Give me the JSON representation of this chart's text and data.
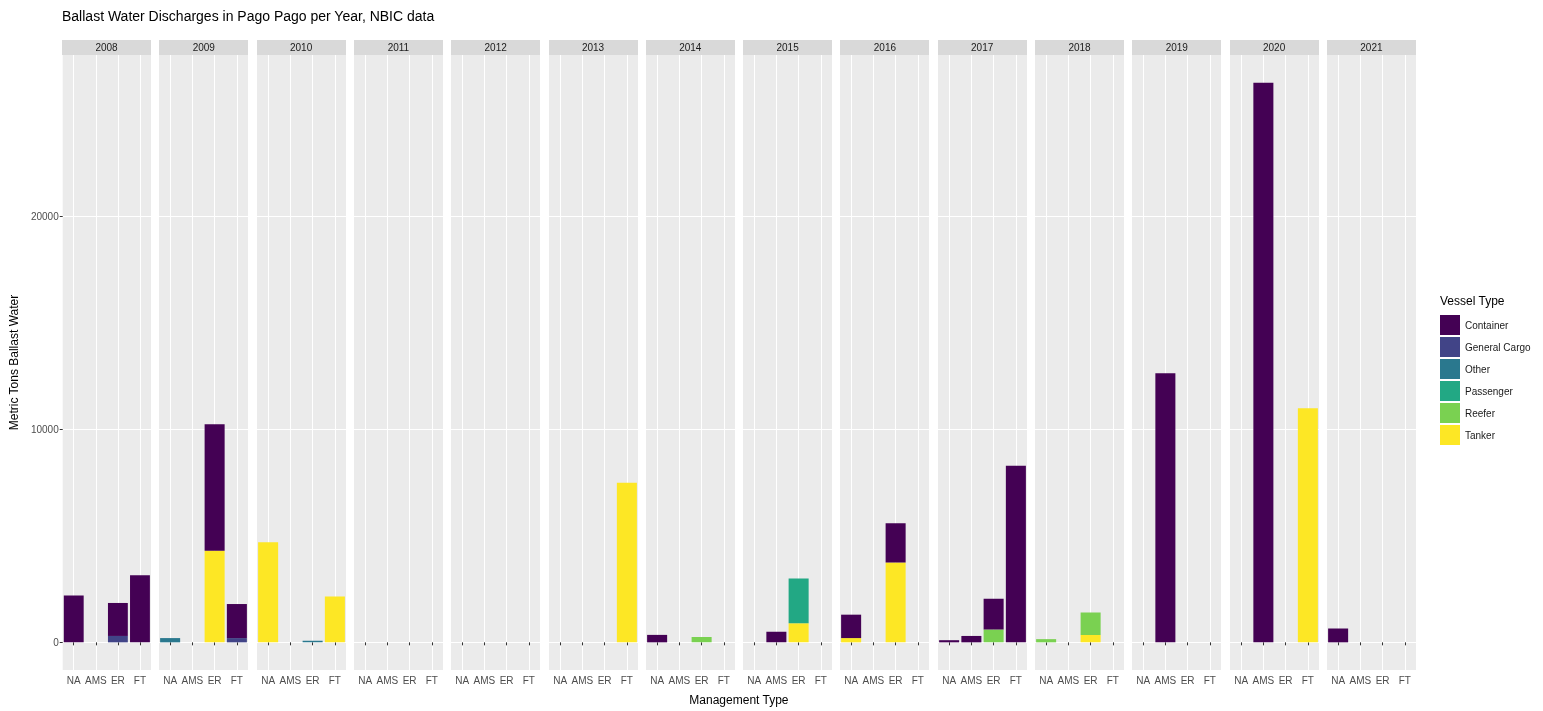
{
  "chart_data": [
    {
      "type": "bar",
      "title": "Ballast Water Discharges in Pago Pago per Year, NBIC data",
      "subtitle": "2008",
      "ylabel": "Metric Tons Ballast Water",
      "categories": [
        "NA",
        "AMS",
        "ER",
        "FT"
      ],
      "stacked": true,
      "grid": true,
      "ylim": [
        -1300,
        27600
      ],
      "yticks": [
        0,
        10000,
        20000
      ],
      "series": [
        {
          "color": "#fde725",
          "values": [
            null,
            null,
            null,
            null
          ]
        },
        {
          "color": "#7ad151",
          "values": [
            null,
            null,
            null,
            null
          ]
        },
        {
          "color": "#22a884",
          "values": [
            null,
            null,
            null,
            null
          ]
        },
        {
          "color": "#2a788e",
          "values": [
            null,
            null,
            null,
            null
          ]
        },
        {
          "color": "#414487",
          "values": [
            null,
            null,
            300,
            null
          ]
        },
        {
          "color": "#440154",
          "values": [
            2200,
            null,
            1550,
            3150
          ]
        }
      ]
    },
    {
      "type": "bar",
      "subtitle": "2009",
      "categories": [
        "NA",
        "AMS",
        "ER",
        "FT"
      ],
      "stacked": true,
      "grid": true,
      "tick_labels": "x",
      "ylim": [
        -1300,
        27600
      ],
      "yticks": [
        0,
        10000,
        20000
      ],
      "series": [
        {
          "color": "#fde725",
          "values": [
            null,
            null,
            4300,
            null
          ]
        },
        {
          "color": "#7ad151",
          "values": [
            null,
            null,
            null,
            null
          ]
        },
        {
          "color": "#22a884",
          "values": [
            null,
            null,
            null,
            null
          ]
        },
        {
          "color": "#2a788e",
          "values": [
            200,
            null,
            null,
            null
          ]
        },
        {
          "color": "#414487",
          "values": [
            null,
            null,
            null,
            200
          ]
        },
        {
          "color": "#440154",
          "values": [
            null,
            null,
            5950,
            1600
          ]
        }
      ]
    },
    {
      "type": "bar",
      "subtitle": "2010",
      "categories": [
        "NA",
        "AMS",
        "ER",
        "FT"
      ],
      "stacked": true,
      "grid": true,
      "tick_labels": "x",
      "ylim": [
        -1300,
        27600
      ],
      "yticks": [
        0,
        10000,
        20000
      ],
      "series": [
        {
          "color": "#fde725",
          "values": [
            4700,
            null,
            null,
            2150
          ]
        },
        {
          "color": "#7ad151",
          "values": [
            null,
            null,
            null,
            null
          ]
        },
        {
          "color": "#22a884",
          "values": [
            null,
            null,
            null,
            null
          ]
        },
        {
          "color": "#2a788e",
          "values": [
            null,
            null,
            80,
            null
          ]
        },
        {
          "color": "#414487",
          "values": [
            null,
            null,
            null,
            null
          ]
        },
        {
          "color": "#440154",
          "values": [
            null,
            null,
            null,
            null
          ]
        }
      ]
    },
    {
      "type": "bar",
      "subtitle": "2011",
      "categories": [
        "NA",
        "AMS",
        "ER",
        "FT"
      ],
      "stacked": true,
      "grid": true,
      "tick_labels": "x",
      "ylim": [
        -1300,
        27600
      ],
      "yticks": [
        0,
        10000,
        20000
      ],
      "series": [
        {
          "color": "#fde725",
          "values": [
            null,
            null,
            null,
            null
          ]
        },
        {
          "color": "#7ad151",
          "values": [
            null,
            null,
            null,
            null
          ]
        },
        {
          "color": "#22a884",
          "values": [
            null,
            null,
            null,
            null
          ]
        },
        {
          "color": "#2a788e",
          "values": [
            null,
            null,
            null,
            null
          ]
        },
        {
          "color": "#414487",
          "values": [
            null,
            null,
            null,
            null
          ]
        },
        {
          "color": "#440154",
          "values": [
            null,
            null,
            null,
            null
          ]
        }
      ]
    },
    {
      "type": "bar",
      "subtitle": "2012",
      "categories": [
        "NA",
        "AMS",
        "ER",
        "FT"
      ],
      "stacked": true,
      "grid": true,
      "tick_labels": "x",
      "ylim": [
        -1300,
        27600
      ],
      "yticks": [
        0,
        10000,
        20000
      ],
      "series": [
        {
          "color": "#fde725",
          "values": [
            null,
            null,
            null,
            null
          ]
        },
        {
          "color": "#7ad151",
          "values": [
            null,
            null,
            null,
            null
          ]
        },
        {
          "color": "#22a884",
          "values": [
            null,
            null,
            null,
            null
          ]
        },
        {
          "color": "#2a788e",
          "values": [
            null,
            null,
            null,
            null
          ]
        },
        {
          "color": "#414487",
          "values": [
            null,
            null,
            null,
            null
          ]
        },
        {
          "color": "#440154",
          "values": [
            null,
            null,
            null,
            null
          ]
        }
      ]
    },
    {
      "type": "bar",
      "subtitle": "2013",
      "categories": [
        "NA",
        "AMS",
        "ER",
        "FT"
      ],
      "stacked": true,
      "grid": true,
      "tick_labels": "x",
      "ylim": [
        -1300,
        27600
      ],
      "yticks": [
        0,
        10000,
        20000
      ],
      "series": [
        {
          "color": "#fde725",
          "values": [
            null,
            null,
            null,
            7500
          ]
        },
        {
          "color": "#7ad151",
          "values": [
            null,
            null,
            null,
            null
          ]
        },
        {
          "color": "#22a884",
          "values": [
            null,
            null,
            null,
            null
          ]
        },
        {
          "color": "#2a788e",
          "values": [
            null,
            null,
            null,
            null
          ]
        },
        {
          "color": "#414487",
          "values": [
            null,
            null,
            null,
            null
          ]
        },
        {
          "color": "#440154",
          "values": [
            null,
            null,
            null,
            null
          ]
        }
      ]
    },
    {
      "type": "bar",
      "subtitle": "2014",
      "xlabel": "Management Type",
      "categories": [
        "NA",
        "AMS",
        "ER",
        "FT"
      ],
      "stacked": true,
      "grid": true,
      "tick_labels": "x",
      "ylim": [
        -1300,
        27600
      ],
      "yticks": [
        0,
        10000,
        20000
      ],
      "series": [
        {
          "color": "#fde725",
          "values": [
            null,
            null,
            null,
            null
          ]
        },
        {
          "color": "#7ad151",
          "values": [
            null,
            null,
            250,
            null
          ]
        },
        {
          "color": "#22a884",
          "values": [
            null,
            null,
            null,
            null
          ]
        },
        {
          "color": "#2a788e",
          "values": [
            null,
            null,
            null,
            null
          ]
        },
        {
          "color": "#414487",
          "values": [
            null,
            null,
            null,
            null
          ]
        },
        {
          "color": "#440154",
          "values": [
            350,
            null,
            null,
            null
          ]
        }
      ]
    },
    {
      "type": "bar",
      "subtitle": "2015",
      "categories": [
        "NA",
        "AMS",
        "ER",
        "FT"
      ],
      "stacked": true,
      "grid": true,
      "tick_labels": "x",
      "ylim": [
        -1300,
        27600
      ],
      "yticks": [
        0,
        10000,
        20000
      ],
      "series": [
        {
          "color": "#fde725",
          "values": [
            null,
            null,
            900,
            null
          ]
        },
        {
          "color": "#7ad151",
          "values": [
            null,
            null,
            null,
            null
          ]
        },
        {
          "color": "#22a884",
          "values": [
            null,
            null,
            2100,
            null
          ]
        },
        {
          "color": "#2a788e",
          "values": [
            null,
            null,
            null,
            null
          ]
        },
        {
          "color": "#414487",
          "values": [
            null,
            null,
            null,
            null
          ]
        },
        {
          "color": "#440154",
          "values": [
            null,
            500,
            null,
            null
          ]
        }
      ]
    },
    {
      "type": "bar",
      "subtitle": "2016",
      "categories": [
        "NA",
        "AMS",
        "ER",
        "FT"
      ],
      "stacked": true,
      "grid": true,
      "tick_labels": "x",
      "ylim": [
        -1300,
        27600
      ],
      "yticks": [
        0,
        10000,
        20000
      ],
      "series": [
        {
          "color": "#fde725",
          "values": [
            200,
            null,
            3750,
            null
          ]
        },
        {
          "color": "#7ad151",
          "values": [
            null,
            null,
            null,
            null
          ]
        },
        {
          "color": "#22a884",
          "values": [
            null,
            null,
            null,
            null
          ]
        },
        {
          "color": "#2a788e",
          "values": [
            null,
            null,
            null,
            null
          ]
        },
        {
          "color": "#414487",
          "values": [
            null,
            null,
            null,
            null
          ]
        },
        {
          "color": "#440154",
          "values": [
            1100,
            null,
            1850,
            null
          ]
        }
      ]
    },
    {
      "type": "bar",
      "subtitle": "2017",
      "categories": [
        "NA",
        "AMS",
        "ER",
        "FT"
      ],
      "stacked": true,
      "grid": true,
      "tick_labels": "x",
      "ylim": [
        -1300,
        27600
      ],
      "yticks": [
        0,
        10000,
        20000
      ],
      "series": [
        {
          "color": "#fde725",
          "values": [
            null,
            null,
            null,
            null
          ]
        },
        {
          "color": "#7ad151",
          "values": [
            null,
            null,
            600,
            null
          ]
        },
        {
          "color": "#22a884",
          "values": [
            null,
            null,
            null,
            null
          ]
        },
        {
          "color": "#2a788e",
          "values": [
            null,
            null,
            null,
            null
          ]
        },
        {
          "color": "#414487",
          "values": [
            null,
            null,
            null,
            null
          ]
        },
        {
          "color": "#440154",
          "values": [
            100,
            300,
            1450,
            8300
          ]
        }
      ]
    },
    {
      "type": "bar",
      "subtitle": "2018",
      "categories": [
        "NA",
        "AMS",
        "ER",
        "FT"
      ],
      "stacked": true,
      "grid": true,
      "tick_labels": "x",
      "ylim": [
        -1300,
        27600
      ],
      "yticks": [
        0,
        10000,
        20000
      ],
      "series": [
        {
          "color": "#fde725",
          "values": [
            null,
            null,
            350,
            null
          ]
        },
        {
          "color": "#7ad151",
          "values": [
            150,
            null,
            1050,
            null
          ]
        },
        {
          "color": "#22a884",
          "values": [
            null,
            null,
            null,
            null
          ]
        },
        {
          "color": "#2a788e",
          "values": [
            null,
            null,
            null,
            null
          ]
        },
        {
          "color": "#414487",
          "values": [
            null,
            null,
            null,
            null
          ]
        },
        {
          "color": "#440154",
          "values": [
            null,
            null,
            null,
            null
          ]
        }
      ]
    },
    {
      "type": "bar",
      "subtitle": "2019",
      "categories": [
        "NA",
        "AMS",
        "ER",
        "FT"
      ],
      "stacked": true,
      "grid": true,
      "tick_labels": "x",
      "ylim": [
        -1300,
        27600
      ],
      "yticks": [
        0,
        10000,
        20000
      ],
      "series": [
        {
          "color": "#fde725",
          "values": [
            null,
            null,
            null,
            null
          ]
        },
        {
          "color": "#7ad151",
          "values": [
            null,
            null,
            null,
            null
          ]
        },
        {
          "color": "#22a884",
          "values": [
            null,
            null,
            null,
            null
          ]
        },
        {
          "color": "#2a788e",
          "values": [
            null,
            null,
            null,
            null
          ]
        },
        {
          "color": "#414487",
          "values": [
            null,
            null,
            null,
            null
          ]
        },
        {
          "color": "#440154",
          "values": [
            null,
            12650,
            null,
            null
          ]
        }
      ]
    },
    {
      "type": "bar",
      "subtitle": "2020",
      "categories": [
        "NA",
        "AMS",
        "ER",
        "FT"
      ],
      "stacked": true,
      "grid": true,
      "tick_labels": "x",
      "ylim": [
        -1300,
        27600
      ],
      "yticks": [
        0,
        10000,
        20000
      ],
      "series": [
        {
          "color": "#fde725",
          "values": [
            null,
            null,
            null,
            11000
          ]
        },
        {
          "color": "#7ad151",
          "values": [
            null,
            null,
            null,
            null
          ]
        },
        {
          "color": "#22a884",
          "values": [
            null,
            null,
            null,
            null
          ]
        },
        {
          "color": "#2a788e",
          "values": [
            null,
            null,
            null,
            null
          ]
        },
        {
          "color": "#414487",
          "values": [
            null,
            null,
            null,
            null
          ]
        },
        {
          "color": "#440154",
          "values": [
            null,
            26300,
            null,
            null
          ]
        }
      ]
    },
    {
      "type": "bar",
      "subtitle": "2021",
      "categories": [
        "NA",
        "AMS",
        "ER",
        "FT"
      ],
      "stacked": true,
      "grid": true,
      "tick_labels": "x",
      "ylim": [
        -1300,
        27600
      ],
      "yticks": [
        0,
        10000,
        20000
      ],
      "legend": "right",
      "legend_title": "Vessel Type",
      "series": [
        {
          "name": "Tanker",
          "color": "#fde725",
          "values": [
            null,
            null,
            null,
            null
          ]
        },
        {
          "name": "Reefer",
          "color": "#7ad151",
          "values": [
            null,
            null,
            null,
            null
          ]
        },
        {
          "name": "Passenger",
          "color": "#22a884",
          "values": [
            null,
            null,
            null,
            null
          ]
        },
        {
          "name": "Other",
          "color": "#2a788e",
          "values": [
            null,
            null,
            null,
            null
          ]
        },
        {
          "name": "General Cargo",
          "color": "#414487",
          "values": [
            null,
            null,
            null,
            null
          ]
        },
        {
          "name": "Container",
          "color": "#440154",
          "values": [
            650,
            null,
            null,
            null
          ]
        }
      ]
    }
  ]
}
